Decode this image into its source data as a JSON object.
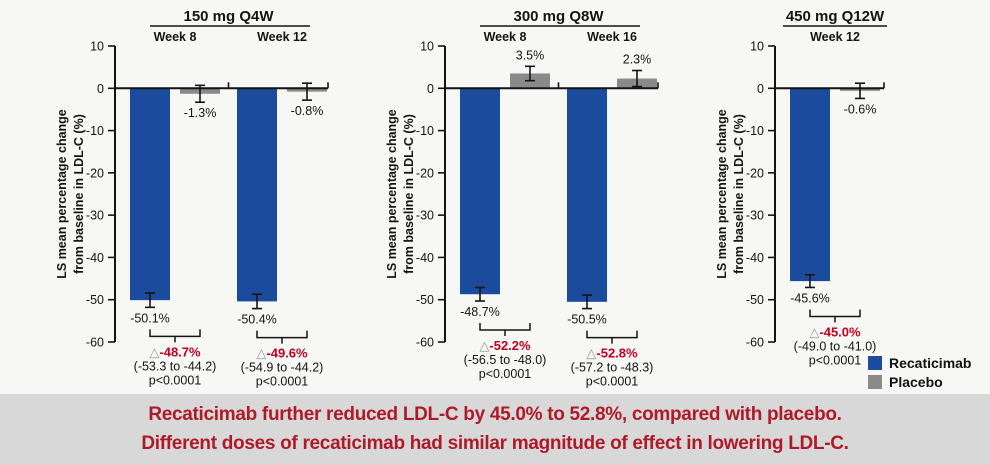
{
  "colors": {
    "recaticimab": "#1b4b9d",
    "placebo": "#8a8a8a",
    "delta_text": "#c00020",
    "triangle": "#9a9a9a",
    "axis": "#141414",
    "banner_text": "#ae1a28",
    "banner_bg": "#d8d8d8",
    "chart_bg": "#f7f7f6"
  },
  "ylabel_line1": "LS mean percentage change",
  "ylabel_line2": "from baseline in LDL-C (%)",
  "legend": [
    {
      "label": "Recaticimab",
      "color_key": "recaticimab"
    },
    {
      "label": "Placebo",
      "color_key": "placebo"
    }
  ],
  "banner": {
    "line1": "Recaticimab further reduced LDL-C by 45.0% to 52.8%, compared with placebo.",
    "line2": "Different doses of recaticimab had similar magnitude of effect in lowering LDL-C."
  },
  "chart_data": [
    {
      "type": "bar",
      "title": "150 mg Q4W",
      "ylabel": "LS mean percentage change from baseline in LDL-C (%)",
      "ylim": [
        -60,
        10
      ],
      "yticks": [
        10,
        0,
        -10,
        -20,
        -30,
        -40,
        -50,
        -60
      ],
      "legend_position": "bottom-right",
      "groups": [
        {
          "label": "Week 8",
          "bars": [
            {
              "series": "Recaticimab",
              "value": -50.1,
              "label": "-50.1%",
              "err": 1.7
            },
            {
              "series": "Placebo",
              "value": -1.3,
              "label": "-1.3%",
              "err": 2.0
            }
          ],
          "diff": {
            "delta": "-48.7%",
            "ci": "(-53.3 to -44.2)",
            "p": "p<0.0001"
          }
        },
        {
          "label": "Week 12",
          "bars": [
            {
              "series": "Recaticimab",
              "value": -50.4,
              "label": "-50.4%",
              "err": 1.7
            },
            {
              "series": "Placebo",
              "value": -0.8,
              "label": "-0.8%",
              "err": 2.0
            }
          ],
          "diff": {
            "delta": "-49.6%",
            "ci": "(-54.9 to -44.2)",
            "p": "p<0.0001"
          }
        }
      ]
    },
    {
      "type": "bar",
      "title": "300 mg Q8W",
      "ylabel": "LS mean percentage change from baseline in LDL-C (%)",
      "ylim": [
        -60,
        10
      ],
      "yticks": [
        10,
        0,
        -10,
        -20,
        -30,
        -40,
        -50,
        -60
      ],
      "groups": [
        {
          "label": "Week 8",
          "bars": [
            {
              "series": "Recaticimab",
              "value": -48.7,
              "label": "-48.7%",
              "err": 1.6
            },
            {
              "series": "Placebo",
              "value": 3.5,
              "label": "3.5%",
              "err": 1.7
            }
          ],
          "diff": {
            "delta": "-52.2%",
            "ci": "(-56.5 to -48.0)",
            "p": "p<0.0001"
          }
        },
        {
          "label": "Week 16",
          "bars": [
            {
              "series": "Recaticimab",
              "value": -50.5,
              "label": "-50.5%",
              "err": 1.6
            },
            {
              "series": "Placebo",
              "value": 2.3,
              "label": "2.3%",
              "err": 1.9
            }
          ],
          "diff": {
            "delta": "-52.8%",
            "ci": "(-57.2 to -48.3)",
            "p": "p<0.0001"
          }
        }
      ]
    },
    {
      "type": "bar",
      "title": "450 mg Q12W",
      "ylabel": "LS mean percentage change from baseline in LDL-C (%)",
      "ylim": [
        -60,
        10
      ],
      "yticks": [
        10,
        0,
        -10,
        -20,
        -30,
        -40,
        -50,
        -60
      ],
      "groups": [
        {
          "label": "Week 12",
          "bars": [
            {
              "series": "Recaticimab",
              "value": -45.6,
              "label": "-45.6%",
              "err": 1.5
            },
            {
              "series": "Placebo",
              "value": -0.6,
              "label": "-0.6%",
              "err": 1.8
            }
          ],
          "diff": {
            "delta": "-45.0%",
            "ci": "(-49.0 to -41.0)",
            "p": "p<0.0001"
          }
        }
      ]
    }
  ]
}
